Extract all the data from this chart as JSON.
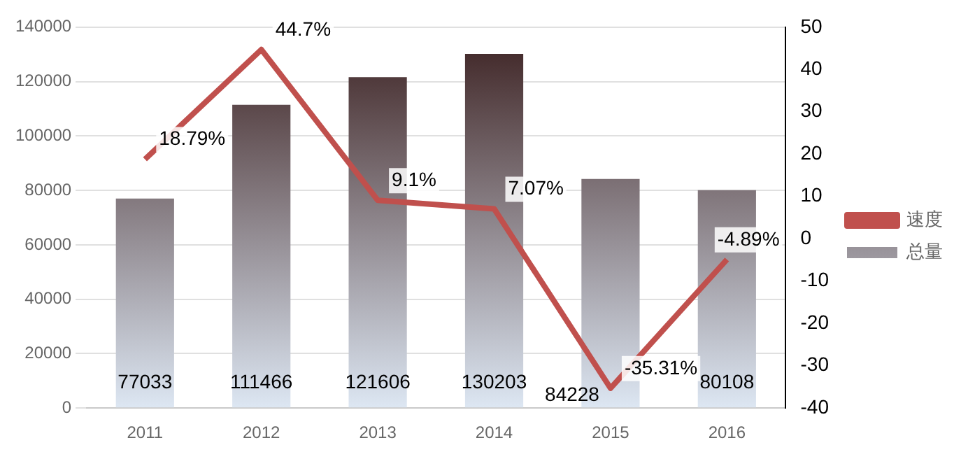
{
  "chart_data": {
    "type": "bar",
    "categories": [
      "2011",
      "2012",
      "2013",
      "2014",
      "2015",
      "2016"
    ],
    "series": [
      {
        "name": "总量",
        "color": "#3a1f1f",
        "values": [
          77033,
          111466,
          121606,
          130203,
          84228,
          80108
        ],
        "value_labels": [
          "77033",
          "111466",
          "121606",
          "130203",
          "84228",
          "80108"
        ]
      },
      {
        "name": "速度",
        "type": "line",
        "axis": "y2",
        "color": "#c0504d",
        "values": [
          18.79,
          44.7,
          9.1,
          7.07,
          -35.31,
          -4.89
        ],
        "value_labels": [
          "18.79%",
          "44.7%",
          "9.1%",
          "7.07%",
          "-35.31%",
          "-4.89%"
        ]
      }
    ],
    "ylim": [
      0,
      140000
    ],
    "yticks": [
      0,
      20000,
      40000,
      60000,
      80000,
      100000,
      120000,
      140000
    ],
    "y2lim": [
      -40,
      50
    ],
    "y2ticks": [
      -40,
      -30,
      -20,
      -10,
      0,
      10,
      20,
      30,
      40,
      50
    ],
    "grid": "y",
    "legend": "right",
    "marker": "none",
    "line_style": "solid"
  }
}
